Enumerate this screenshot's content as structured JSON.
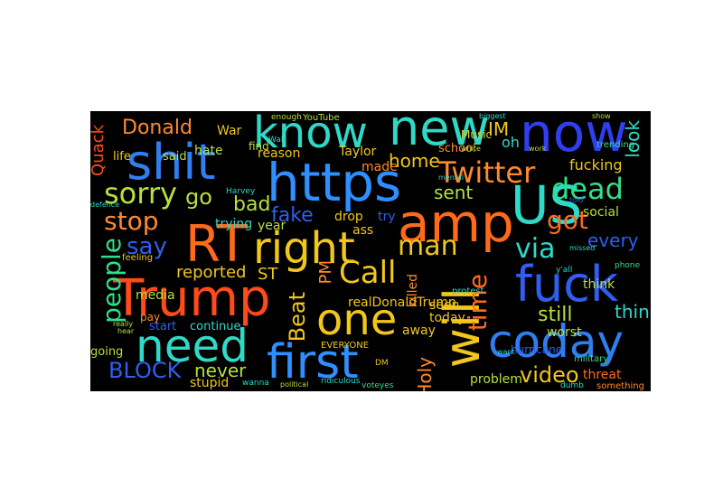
{
  "palette": {
    "background": "#000000",
    "page": "#ffffff"
  },
  "words": [
    {
      "text": "know",
      "color": "#2fd9c8"
    },
    {
      "text": "new",
      "color": "#2fd9c8"
    },
    {
      "text": "now",
      "color": "#2f3ff0"
    },
    {
      "text": "shit",
      "color": "#2f7ff0"
    },
    {
      "text": "https",
      "color": "#2f8fff"
    },
    {
      "text": "amp",
      "color": "#ff6a1a"
    },
    {
      "text": "US",
      "color": "#2fd9c8"
    },
    {
      "text": "RT",
      "color": "#ff6a1a"
    },
    {
      "text": "right",
      "color": "#f0c71a"
    },
    {
      "text": "Trump",
      "color": "#ff4a1a"
    },
    {
      "text": "fuck",
      "color": "#2f5ff0"
    },
    {
      "text": "one",
      "color": "#f0c71a"
    },
    {
      "text": "will",
      "color": "#f0c71a"
    },
    {
      "text": "need",
      "color": "#2fd9c8"
    },
    {
      "text": "first",
      "color": "#2f8fff"
    },
    {
      "text": "coday",
      "color": "#2f7ff0"
    },
    {
      "text": "Donald",
      "color": "#ff8a2a"
    },
    {
      "text": "Twitter",
      "color": "#ff8a2a"
    },
    {
      "text": "sorry",
      "color": "#b8e03a"
    },
    {
      "text": "stop",
      "color": "#ff8a2a"
    },
    {
      "text": "go",
      "color": "#b8e03a"
    },
    {
      "text": "dead",
      "color": "#2fe08a"
    },
    {
      "text": "got",
      "color": "#ff6a1a"
    },
    {
      "text": "people",
      "color": "#2fe08a"
    },
    {
      "text": "say",
      "color": "#2f5ff0"
    },
    {
      "text": "man",
      "color": "#f0c71a"
    },
    {
      "text": "via",
      "color": "#2fd9c8"
    },
    {
      "text": "time",
      "color": "#ff6a1a"
    },
    {
      "text": "Call",
      "color": "#f0c71a"
    },
    {
      "text": "Beat",
      "color": "#f0c71a"
    },
    {
      "text": "BLOCK",
      "color": "#2f5ff0"
    },
    {
      "text": "never",
      "color": "#b8e03a"
    },
    {
      "text": "video",
      "color": "#f0c71a"
    },
    {
      "text": "thing",
      "color": "#2fd9c8"
    },
    {
      "text": "still",
      "color": "#b8e03a"
    },
    {
      "text": "bad",
      "color": "#b8e03a"
    },
    {
      "text": "fake",
      "color": "#2f5ff0"
    },
    {
      "text": "Quack",
      "color": "#ff4a1a"
    },
    {
      "text": "look",
      "color": "#2fd9c8"
    },
    {
      "text": "every",
      "color": "#2f5ff0"
    },
    {
      "text": "IM",
      "color": "#f0c71a"
    },
    {
      "text": "home",
      "color": "#f0c71a"
    },
    {
      "text": "sent",
      "color": "#b8e03a"
    },
    {
      "text": "reported",
      "color": "#f0c71a"
    },
    {
      "text": "PM",
      "color": "#ff8a2a"
    },
    {
      "text": "ST",
      "color": "#f0c71a"
    },
    {
      "text": "Holy",
      "color": "#ff8a2a"
    },
    {
      "text": "realDonaldTrump",
      "color": "#f0c71a"
    },
    {
      "text": "seen",
      "color": "#f0c71a"
    },
    {
      "text": "today",
      "color": "#f0c71a"
    },
    {
      "text": "away",
      "color": "#f0c71a"
    },
    {
      "text": "killed",
      "color": "#ff8a2a"
    },
    {
      "text": "oh",
      "color": "#2fd9c8"
    },
    {
      "text": "fucking",
      "color": "#f0c71a"
    },
    {
      "text": "worst",
      "color": "#b8e03a"
    },
    {
      "text": "social",
      "color": "#b8e03a"
    },
    {
      "text": "think",
      "color": "#b8e03a"
    },
    {
      "text": "threat",
      "color": "#ff6a1a"
    },
    {
      "text": "problem",
      "color": "#b8e03a"
    },
    {
      "text": "stupid",
      "color": "#f0c71a"
    },
    {
      "text": "continue",
      "color": "#2fd9c8"
    },
    {
      "text": "start",
      "color": "#2f5ff0"
    },
    {
      "text": "pay",
      "color": "#ff8a2a"
    },
    {
      "text": "media",
      "color": "#b8e03a"
    },
    {
      "text": "going",
      "color": "#b8e03a"
    },
    {
      "text": "trying",
      "color": "#2fd9c8"
    },
    {
      "text": "year",
      "color": "#b8e03a"
    },
    {
      "text": "drop",
      "color": "#f0c71a"
    },
    {
      "text": "try",
      "color": "#2f5ff0"
    },
    {
      "text": "ass",
      "color": "#f0c71a"
    },
    {
      "text": "hate",
      "color": "#b8e03a"
    },
    {
      "text": "life",
      "color": "#f0c71a"
    },
    {
      "text": "said",
      "color": "#b8e03a"
    },
    {
      "text": "War",
      "color": "#f0c71a"
    },
    {
      "text": "reason",
      "color": "#f0c71a"
    },
    {
      "text": "Taylor",
      "color": "#f0c71a"
    },
    {
      "text": "made",
      "color": "#ff8a2a"
    },
    {
      "text": "find",
      "color": "#b8e03a"
    },
    {
      "text": "school",
      "color": "#ff8a2a"
    },
    {
      "text": "Music",
      "color": "#f0c71a"
    },
    {
      "text": "YouTube",
      "color": "#b8e03a"
    },
    {
      "text": "enough",
      "color": "#b8e03a"
    },
    {
      "text": "trending",
      "color": "#2fe08a"
    },
    {
      "text": "hurricane",
      "color": "#2f5ff0"
    },
    {
      "text": "military",
      "color": "#2fe08a"
    },
    {
      "text": "something",
      "color": "#ff8a2a"
    },
    {
      "text": "EVERYONE",
      "color": "#f0c71a"
    },
    {
      "text": "protest",
      "color": "#2fd9c8"
    },
    {
      "text": "feeling",
      "color": "#f0c71a"
    },
    {
      "text": "Harvey",
      "color": "#2fd9c8"
    },
    {
      "text": "mental",
      "color": "#2fd9c8"
    },
    {
      "text": "phone",
      "color": "#2fe08a"
    },
    {
      "text": "dumb",
      "color": "#2fd9c8"
    },
    {
      "text": "wanna",
      "color": "#2fd9c8"
    },
    {
      "text": "political",
      "color": "#b8e03a"
    },
    {
      "text": "ridiculous",
      "color": "#2fd9c8"
    },
    {
      "text": "voteyes",
      "color": "#2fe08a"
    },
    {
      "text": "DM",
      "color": "#f0c71a"
    },
    {
      "text": "Wall",
      "color": "#2fd9c8"
    },
    {
      "text": "white",
      "color": "#b8e03a"
    },
    {
      "text": "work",
      "color": "#b8e03a"
    },
    {
      "text": "biggest",
      "color": "#2fd9c8"
    },
    {
      "text": "show",
      "color": "#b8e03a"
    },
    {
      "text": "defence",
      "color": "#2fd9c8"
    },
    {
      "text": "missed",
      "color": "#2fd9c8"
    },
    {
      "text": "told",
      "color": "#2f5ff0"
    },
    {
      "text": "y'all",
      "color": "#2fd9c8"
    },
    {
      "text": "want",
      "color": "#2fd9c8"
    },
    {
      "text": "really",
      "color": "#b8e03a"
    },
    {
      "text": "hear",
      "color": "#b8e03a"
    }
  ]
}
